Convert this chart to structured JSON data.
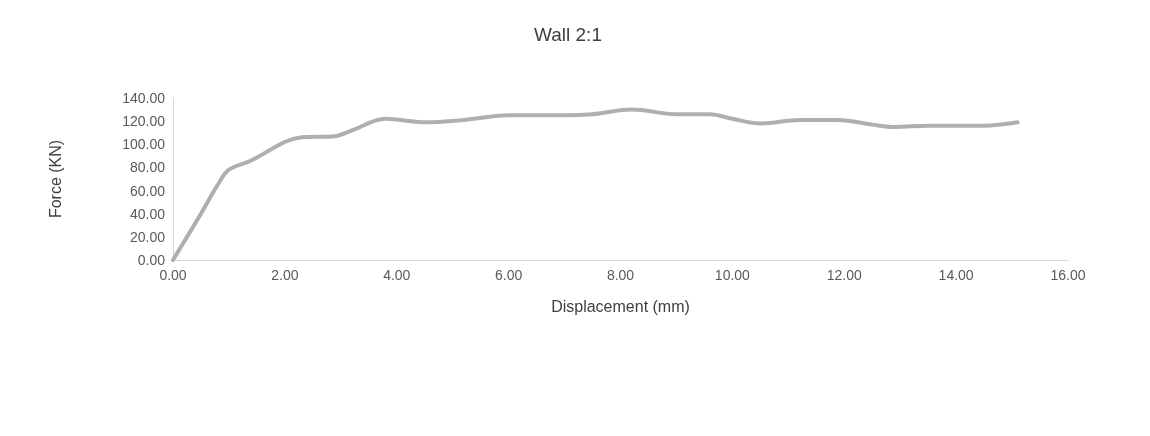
{
  "chart_data": {
    "type": "line",
    "title": "Wall 2:1",
    "xlabel": "Displacement (mm)",
    "ylabel": "Force (KN)",
    "xlim": [
      0,
      16
    ],
    "ylim": [
      0,
      140
    ],
    "xticks": [
      {
        "value": 0,
        "label": "0.00"
      },
      {
        "value": 2,
        "label": "2.00"
      },
      {
        "value": 4,
        "label": "4.00"
      },
      {
        "value": 6,
        "label": "6.00"
      },
      {
        "value": 8,
        "label": "8.00"
      },
      {
        "value": 10,
        "label": "10.00"
      },
      {
        "value": 12,
        "label": "12.00"
      },
      {
        "value": 14,
        "label": "14.00"
      },
      {
        "value": 16,
        "label": "16.00"
      }
    ],
    "yticks": [
      {
        "value": 0,
        "label": "0.00"
      },
      {
        "value": 20,
        "label": "20.00"
      },
      {
        "value": 40,
        "label": "40.00"
      },
      {
        "value": 60,
        "label": "60.00"
      },
      {
        "value": 80,
        "label": "80.00"
      },
      {
        "value": 100,
        "label": "100.00"
      },
      {
        "value": 120,
        "label": "120.00"
      },
      {
        "value": 140,
        "label": "140.00"
      }
    ],
    "grid": false,
    "marker": "none",
    "line_style": "solid",
    "series": [
      {
        "color": "#afafaf",
        "x": [
          0,
          0.5,
          0.8,
          1.0,
          1.4,
          2.0,
          2.3,
          2.9,
          3.2,
          3.8,
          4.5,
          5.2,
          6.0,
          7.0,
          7.5,
          8.2,
          9.0,
          9.6,
          10.0,
          10.5,
          11.2,
          11.9,
          12.5,
          12.9,
          13.5,
          14.5,
          15.1
        ],
        "values": [
          0,
          40,
          65,
          78,
          86,
          102,
          106,
          107,
          112,
          122,
          119,
          121,
          125,
          125,
          126,
          130,
          126,
          126,
          122,
          118,
          121,
          121,
          117,
          115,
          116,
          116,
          119
        ]
      }
    ]
  }
}
